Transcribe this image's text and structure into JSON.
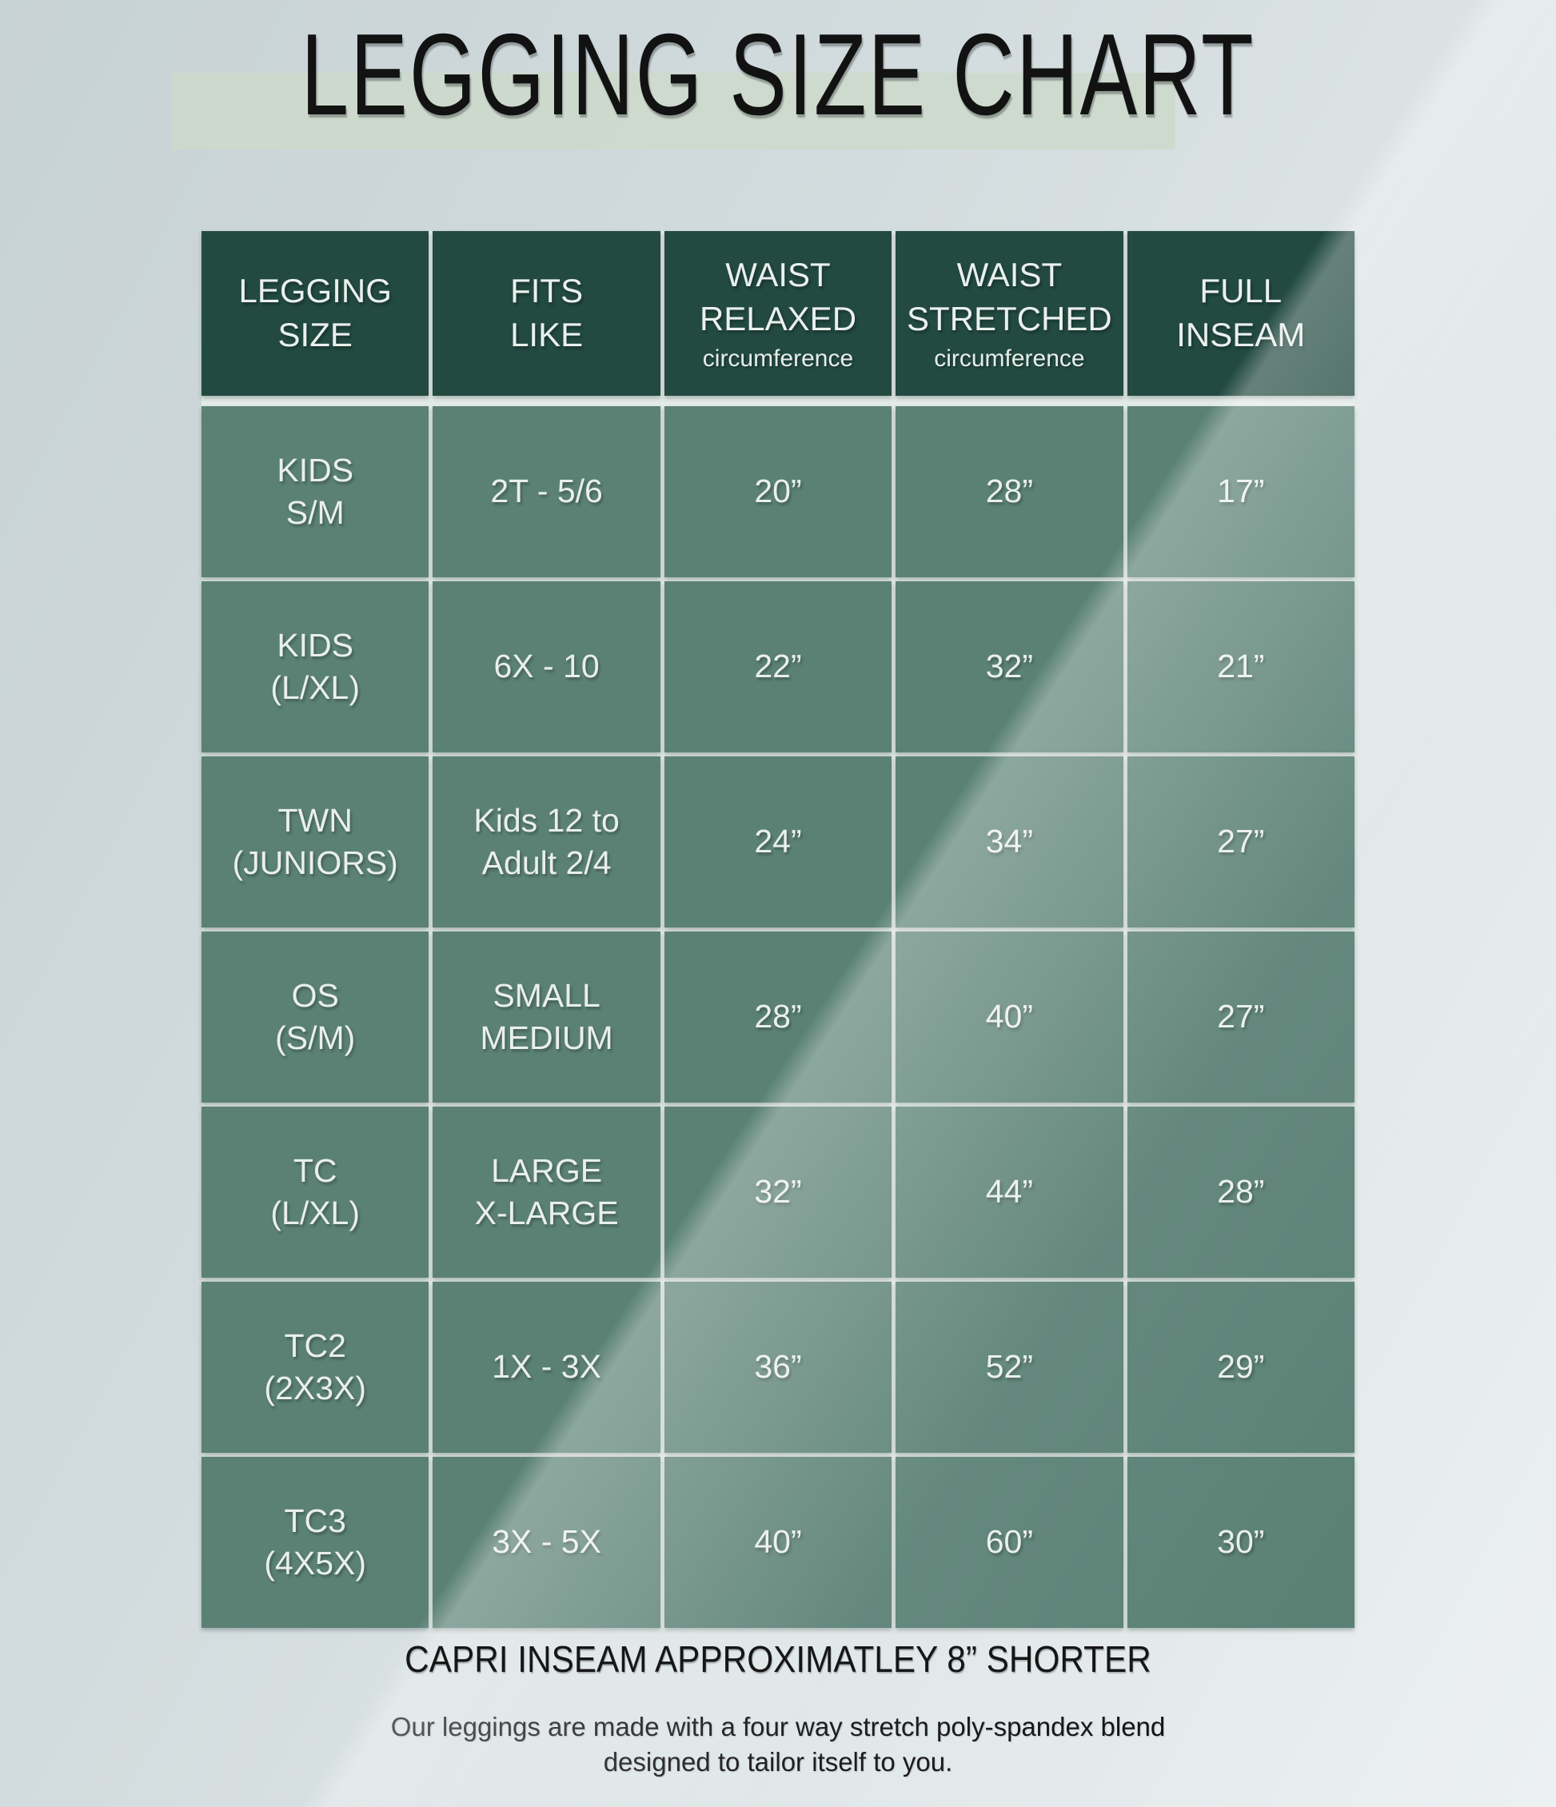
{
  "page": {
    "title": "LEGGING SIZE CHART",
    "footer_note": "CAPRI INSEAM APPROXIMATLEY 8” SHORTER",
    "footer_description": "Our leggings are made with a four way stretch poly-spandex blend\ndesigned to tailor itself to you."
  },
  "table": {
    "header": [
      {
        "title": "LEGGING\nSIZE",
        "subtitle": ""
      },
      {
        "title": "FITS\nLIKE",
        "subtitle": ""
      },
      {
        "title": "WAIST\nRELAXED",
        "subtitle": "circumference"
      },
      {
        "title": "WAIST\nSTRETCHED",
        "subtitle": "circumference"
      },
      {
        "title": "FULL\nINSEAM",
        "subtitle": ""
      }
    ],
    "rows": [
      {
        "cells": [
          "KIDS\nS/M",
          "2T - 5/6",
          "20”",
          "28”",
          "17”"
        ]
      },
      {
        "cells": [
          "KIDS\n(L/XL)",
          "6X - 10",
          "22”",
          "32”",
          "21”"
        ]
      },
      {
        "cells": [
          "TWN\n(JUNIORS)",
          "Kids 12 to\nAdult 2/4",
          "24”",
          "34”",
          "27”"
        ]
      },
      {
        "cells": [
          "OS\n(S/M)",
          "SMALL\nMEDIUM",
          "28”",
          "40”",
          "27”"
        ]
      },
      {
        "cells": [
          "TC\n(L/XL)",
          "LARGE\nX-LARGE",
          "32”",
          "44”",
          "28”"
        ]
      },
      {
        "cells": [
          "TC2\n(2X3X)",
          "1X - 3X",
          "36”",
          "52”",
          "29”"
        ]
      },
      {
        "cells": [
          "TC3\n(4X5X)",
          "3X - 5X",
          "40”",
          "60”",
          "30”"
        ]
      }
    ]
  },
  "colors": {
    "header_green": "#224a40",
    "body_green": "#5b8175",
    "grid_line": "#e2eae7",
    "title_highlight": "#cdd9cb",
    "background_top": "#c7d2d4",
    "background_bottom": "#ecf0f1",
    "text_dark": "#141414",
    "text_light": "#e9efec"
  }
}
